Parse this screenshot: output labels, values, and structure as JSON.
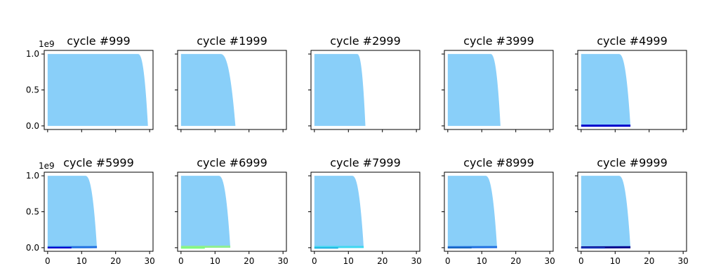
{
  "figure": {
    "layout": "2 rows x 5 columns, shared x and y axes",
    "background": "#ffffff",
    "frame_color": "#000000"
  },
  "chart_data": {
    "type": "area",
    "grid": false,
    "legend": "none",
    "xlim": [
      -1,
      31
    ],
    "ylim": [
      -50000000.0,
      1050000000.0
    ],
    "x_ticks": [
      0,
      10,
      20,
      30
    ],
    "x_tick_labels": [
      "0",
      "10",
      "20",
      "30"
    ],
    "y_ticks": [
      0,
      500000000.0,
      1000000000.0
    ],
    "y_tick_labels": [
      "0.0",
      "0.5",
      "1.0"
    ],
    "y_offset_label": "1e9",
    "fill_color": "#89cff9",
    "panels": [
      {
        "title": "cycle #999",
        "area": {
          "x_end": 29.5,
          "knee": 26.5,
          "y_max": 1000000000.0
        },
        "lines": []
      },
      {
        "title": "cycle #1999",
        "area": {
          "x_end": 16.0,
          "knee": 11.5,
          "y_max": 1000000000.0
        },
        "lines": []
      },
      {
        "title": "cycle #2999",
        "area": {
          "x_end": 15.0,
          "knee": 12.5,
          "y_max": 1000000000.0
        },
        "lines": []
      },
      {
        "title": "cycle #3999",
        "area": {
          "x_end": 15.5,
          "knee": 12.5,
          "y_max": 1000000000.0
        },
        "lines": []
      },
      {
        "title": "cycle #4999",
        "area": {
          "x_end": 14.5,
          "knee": 11.0,
          "y_max": 1000000000.0
        },
        "lines": [
          {
            "color": "#0000cd",
            "x": [
              0,
              14.5
            ],
            "y": [
              4000000.0,
              4000000.0
            ],
            "width": 3
          }
        ]
      },
      {
        "title": "cycle #5999",
        "area": {
          "x_end": 14.5,
          "knee": 11.0,
          "y_max": 1000000000.0
        },
        "lines": [
          {
            "color": "#1f6fe0",
            "x": [
              0,
              14.5
            ],
            "y": [
              6000000.0,
              8000000.0
            ],
            "width": 3
          },
          {
            "color": "#0000cd",
            "x": [
              0,
              7
            ],
            "y": [
              0.0,
              0.0
            ],
            "width": 2
          }
        ]
      },
      {
        "title": "cycle #6999",
        "area": {
          "x_end": 14.5,
          "knee": 11.0,
          "y_max": 1000000000.0
        },
        "lines": [
          {
            "color": "#90ee90",
            "x": [
              0,
              14.5
            ],
            "y": [
              12000000.0,
              15000000.0
            ],
            "width": 3
          },
          {
            "color": "#7cfc7c",
            "x": [
              0,
              7
            ],
            "y": [
              -4000000.0,
              -4000000.0
            ],
            "width": 2
          }
        ]
      },
      {
        "title": "cycle #7999",
        "area": {
          "x_end": 14.5,
          "knee": 11.0,
          "y_max": 1000000000.0
        },
        "lines": [
          {
            "color": "#40d8f0",
            "x": [
              0,
              14.5
            ],
            "y": [
              8000000.0,
              10000000.0
            ],
            "width": 3
          },
          {
            "color": "#20b2e0",
            "x": [
              0,
              7
            ],
            "y": [
              -4000000.0,
              -4000000.0
            ],
            "width": 2
          }
        ]
      },
      {
        "title": "cycle #8999",
        "area": {
          "x_end": 14.5,
          "knee": 11.0,
          "y_max": 1000000000.0
        },
        "lines": [
          {
            "color": "#1f6fe0",
            "x": [
              0,
              14.5
            ],
            "y": [
              6000000.0,
              8000000.0
            ],
            "width": 3
          },
          {
            "color": "#1565c0",
            "x": [
              0,
              7
            ],
            "y": [
              0.0,
              0.0
            ],
            "width": 2
          }
        ]
      },
      {
        "title": "cycle #9999",
        "area": {
          "x_end": 14.5,
          "knee": 11.0,
          "y_max": 1000000000.0
        },
        "lines": [
          {
            "color": "#00008b",
            "x": [
              0,
              14.5
            ],
            "y": [
              4000000.0,
              6000000.0
            ],
            "width": 3
          },
          {
            "color": "#1f3fbf",
            "x": [
              0,
              7
            ],
            "y": [
              -2000000.0,
              -2000000.0
            ],
            "width": 2
          }
        ]
      }
    ]
  }
}
